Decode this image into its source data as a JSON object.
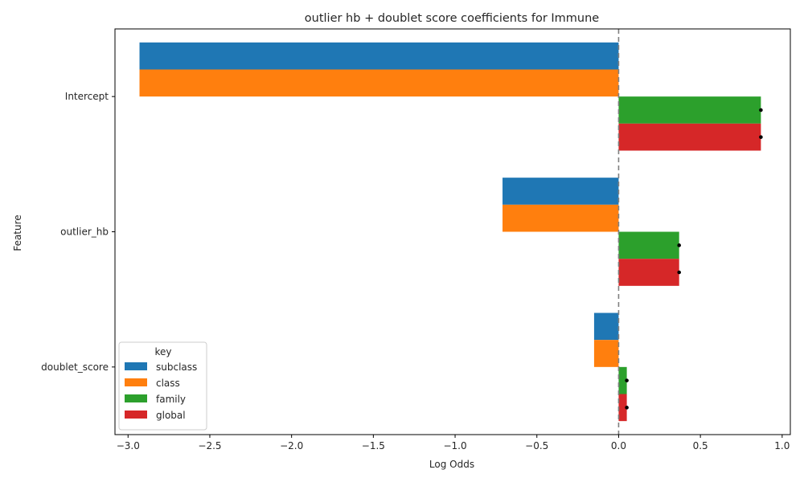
{
  "chart_data": {
    "type": "bar",
    "orientation": "horizontal",
    "title": "outlier hb + doublet score coefficients for Immune",
    "xlabel": "Log Odds",
    "ylabel": "Feature",
    "categories": [
      "Intercept",
      "outlier_hb",
      "doublet_score"
    ],
    "series": [
      {
        "name": "subclass",
        "color": "#1f77b4",
        "values": [
          -2.93,
          -0.71,
          -0.15
        ]
      },
      {
        "name": "class",
        "color": "#ff7f0e",
        "values": [
          -2.93,
          -0.71,
          -0.15
        ]
      },
      {
        "name": "family",
        "color": "#2ca02c",
        "values": [
          0.87,
          0.37,
          0.05
        ]
      },
      {
        "name": "global",
        "color": "#d62728",
        "values": [
          0.87,
          0.37,
          0.05
        ]
      }
    ],
    "error_markers": {
      "family": [
        0.87,
        0.37,
        0.05
      ],
      "global": [
        0.87,
        0.37,
        0.05
      ]
    },
    "xlim": [
      -3.08,
      1.05
    ],
    "xticks": [
      -3.0,
      -2.5,
      -2.0,
      -1.5,
      -1.0,
      -0.5,
      0.0,
      0.5,
      1.0
    ],
    "xtick_labels": [
      "−3.0",
      "−2.5",
      "−2.0",
      "−1.5",
      "−1.0",
      "−0.5",
      "0.0",
      "0.5",
      "1.0"
    ],
    "reference_line": {
      "x": 0,
      "style": "dashed",
      "color": "#808080"
    },
    "legend": {
      "title": "key",
      "placement": "lower-left"
    },
    "grid": false
  }
}
